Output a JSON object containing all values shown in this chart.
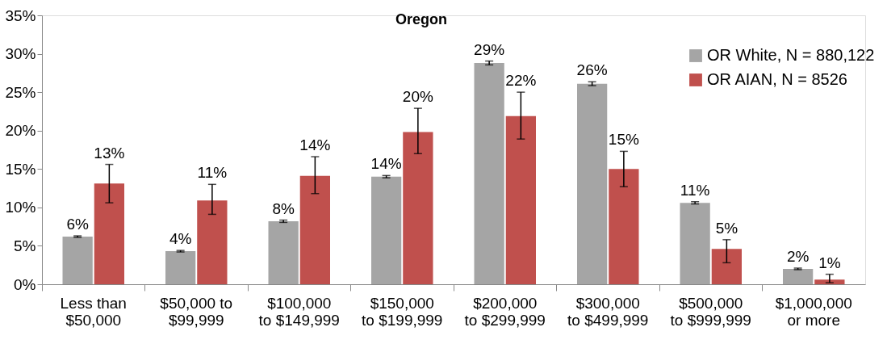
{
  "chart_data": {
    "type": "bar",
    "title": "Oregon",
    "categories": [
      "Less than\n$50,000",
      "$50,000 to\n$99,999",
      "$100,000\nto $149,999",
      "$150,000\nto $199,999",
      "$200,000\nto $299,999",
      "$300,000\nto $499,999",
      "$500,000\nto $999,999",
      "$1,000,000\nor more"
    ],
    "series": [
      {
        "name": "OR White, N = 880,122",
        "color": "#a5a5a5",
        "values": [
          6.2,
          4.3,
          8.2,
          14.0,
          28.8,
          26.1,
          10.6,
          2.0
        ],
        "errors": [
          0.1,
          0.1,
          0.15,
          0.15,
          0.25,
          0.25,
          0.15,
          0.1
        ],
        "value_labels": [
          "6%",
          "4%",
          "8%",
          "14%",
          "29%",
          "26%",
          "11%",
          "2%"
        ]
      },
      {
        "name": "OR AIAN, N = 8526",
        "color": "#c0504d",
        "values": [
          13.1,
          10.9,
          14.1,
          19.8,
          21.9,
          15.0,
          4.6,
          0.6
        ],
        "errors": [
          [
            10.6,
            15.6
          ],
          [
            9.1,
            13.0
          ],
          [
            11.8,
            16.6
          ],
          [
            17.0,
            22.9
          ],
          [
            18.9,
            25.0
          ],
          [
            12.7,
            17.3
          ],
          [
            2.8,
            5.8
          ],
          [
            0.2,
            1.3
          ]
        ],
        "value_labels": [
          "13%",
          "11%",
          "14%",
          "20%",
          "22%",
          "15%",
          "5%",
          "1%"
        ]
      }
    ],
    "ylim": [
      0,
      35
    ],
    "yticks": [
      {
        "value": 0,
        "label": "0%"
      },
      {
        "value": 5,
        "label": "5%"
      },
      {
        "value": 10,
        "label": "10%"
      },
      {
        "value": 15,
        "label": "15%"
      },
      {
        "value": 20,
        "label": "20%"
      },
      {
        "value": 25,
        "label": "25%"
      },
      {
        "value": 30,
        "label": "30%"
      },
      {
        "value": 35,
        "label": "35%"
      }
    ],
    "grid": false,
    "legend": "top right"
  }
}
